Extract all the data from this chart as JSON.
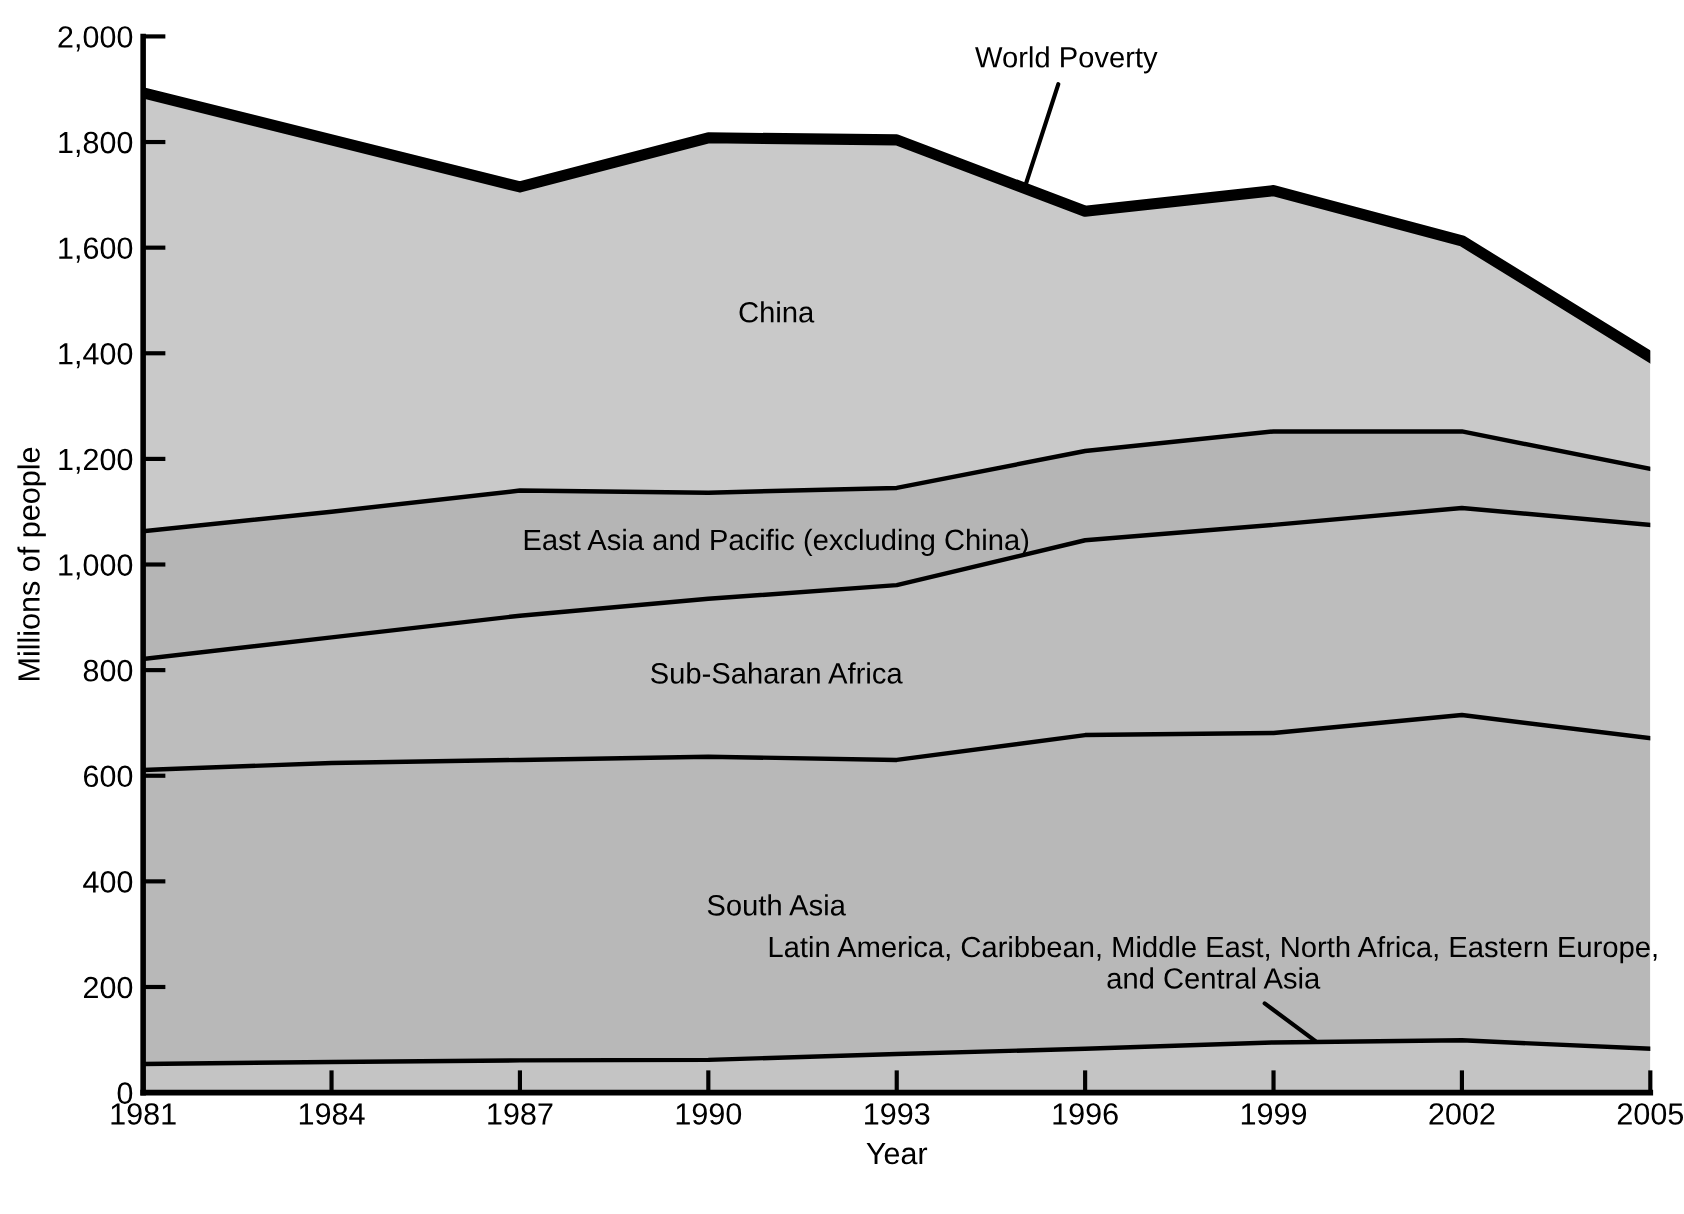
{
  "chart_data": {
    "type": "area",
    "stacked": true,
    "xlabel": "Year",
    "ylabel": "Millions of people",
    "x": [
      1981,
      1984,
      1987,
      1990,
      1993,
      1996,
      1999,
      2002,
      2005
    ],
    "series": [
      {
        "name": "Latin America, Caribbean, Middle East, North Africa, Eastern Europe, and Central Asia",
        "color": "#c4c4c4",
        "values": [
          54,
          58,
          61,
          62,
          73,
          83,
          95,
          99,
          83
        ]
      },
      {
        "name": "South Asia",
        "color": "#b8b8b8",
        "values": [
          557,
          566,
          569,
          574,
          557,
          594,
          586,
          616,
          588
        ]
      },
      {
        "name": "Sub-Saharan Africa",
        "color": "#bdbdbd",
        "values": [
          210,
          238,
          273,
          299,
          331,
          369,
          394,
          392,
          404
        ]
      },
      {
        "name": "East Asia and Pacific (excluding China)",
        "color": "#b5b5b5",
        "values": [
          242,
          238,
          237,
          201,
          184,
          169,
          177,
          145,
          106
        ]
      },
      {
        "name": "China",
        "color": "#c9c9c9",
        "values": [
          830,
          704,
          575,
          672,
          659,
          454,
          456,
          361,
          212
        ]
      }
    ],
    "annotations": [
      {
        "text": "World Poverty",
        "x": 1995,
        "y": 1700
      }
    ],
    "xlim": [
      1981,
      2005
    ],
    "ylim": [
      0,
      2000
    ],
    "xticks": [
      1981,
      1984,
      1987,
      1990,
      1993,
      1996,
      1999,
      2002,
      2005
    ],
    "yticks": [
      0,
      200,
      400,
      600,
      800,
      {
        "value": 1000,
        "label": "1,000"
      },
      {
        "value": 1200,
        "label": "1,200"
      },
      {
        "value": 1400,
        "label": "1,400"
      },
      {
        "value": 1600,
        "label": "1,600"
      },
      {
        "value": 1800,
        "label": "1,800"
      },
      {
        "value": 2000,
        "label": "2,000"
      }
    ],
    "grid": false,
    "legend": false
  }
}
